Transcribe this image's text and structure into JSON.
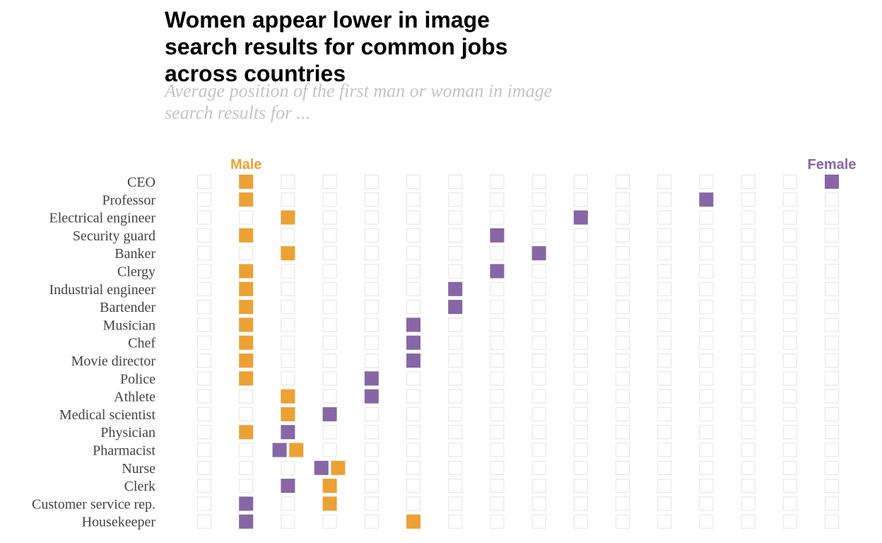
{
  "chart_data": {
    "type": "dot-grid",
    "title": "Women appear lower in image search results for common jobs across countries",
    "subtitle": "Average position of the first man or woman in image search results for ...",
    "legend": [
      {
        "name": "Male",
        "color": "#eca135"
      },
      {
        "name": "Female",
        "color": "#8766a6"
      }
    ],
    "grid": {
      "columns": 16,
      "empty_box_color": "#e3e3e3"
    },
    "categories": [
      "CEO",
      "Professor",
      "Electrical engineer",
      "Security guard",
      "Banker",
      "Clergy",
      "Industrial engineer",
      "Bartender",
      "Musician",
      "Chef",
      "Movie director",
      "Police",
      "Athlete",
      "Medical scientist",
      "Physician",
      "Pharmacist",
      "Nurse",
      "Clerk",
      "Customer service rep.",
      "Housekeeper"
    ],
    "series": [
      {
        "name": "Male",
        "values": [
          2,
          2,
          3,
          2,
          3,
          2,
          2,
          2,
          2,
          2,
          2,
          2,
          3,
          3,
          2,
          3.2,
          4.2,
          4,
          4,
          6
        ]
      },
      {
        "name": "Female",
        "values": [
          16,
          13,
          10,
          8,
          9,
          8,
          7,
          7,
          6,
          6,
          6,
          5,
          5,
          4,
          3,
          2.8,
          3.8,
          3,
          2,
          2
        ]
      }
    ]
  }
}
